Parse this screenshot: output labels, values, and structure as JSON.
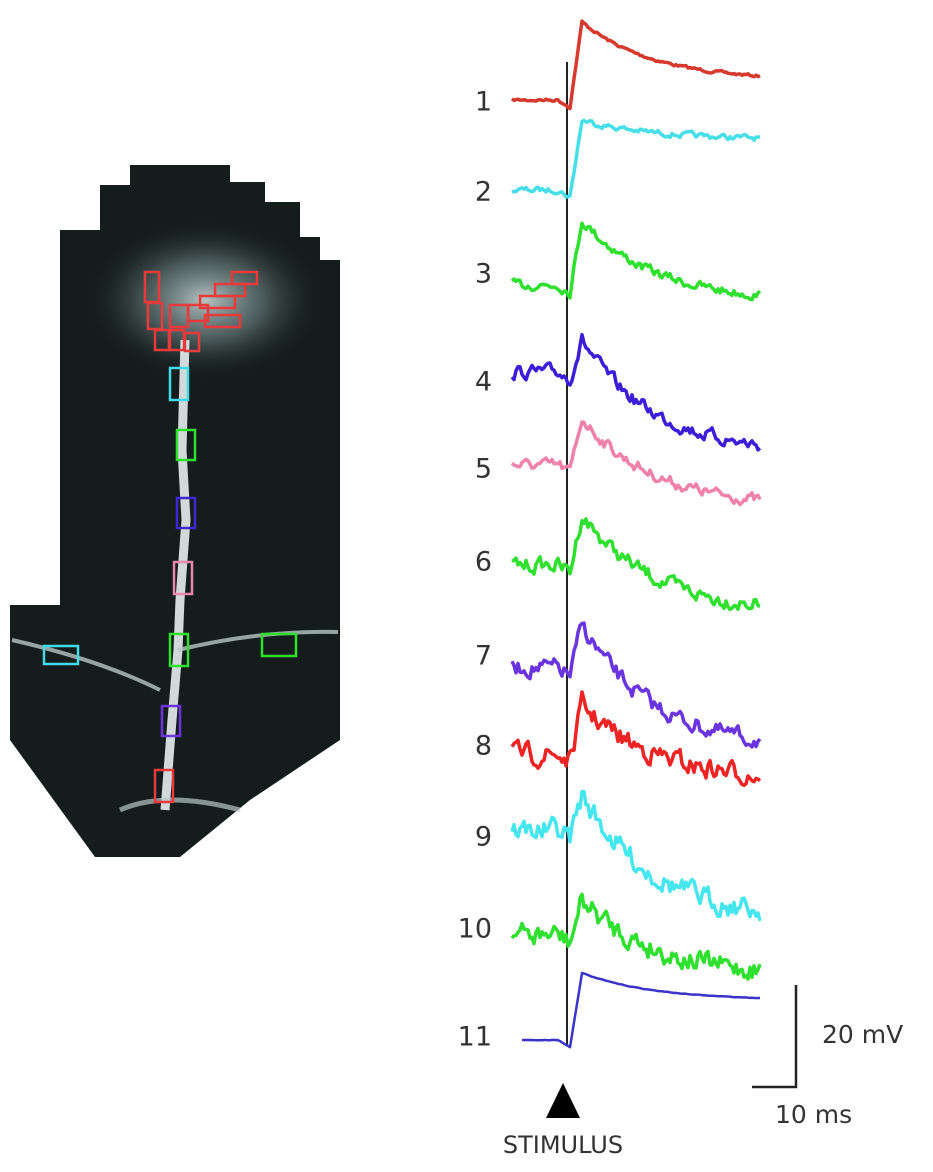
{
  "traces": [
    {
      "label": "1",
      "color": "#d63a2e"
    },
    {
      "label": "2",
      "color": "#46dfe8"
    },
    {
      "label": "3",
      "color": "#2fe02f"
    },
    {
      "label": "4",
      "color": "#3b1fd8"
    },
    {
      "label": "5",
      "color": "#ee82aa"
    },
    {
      "label": "6",
      "color": "#2fe02f"
    },
    {
      "label": "7",
      "color": "#6a35e0"
    },
    {
      "label": "8",
      "color": "#ee2424"
    },
    {
      "label": "9",
      "color": "#46e6ee"
    },
    {
      "label": "10",
      "color": "#2fe02f"
    },
    {
      "label": "11",
      "color": "#3a34c8"
    }
  ],
  "scale_bar": {
    "amplitude": "20 mV",
    "duration": "10 ms"
  },
  "stimulus_label": "STIMULUS"
}
